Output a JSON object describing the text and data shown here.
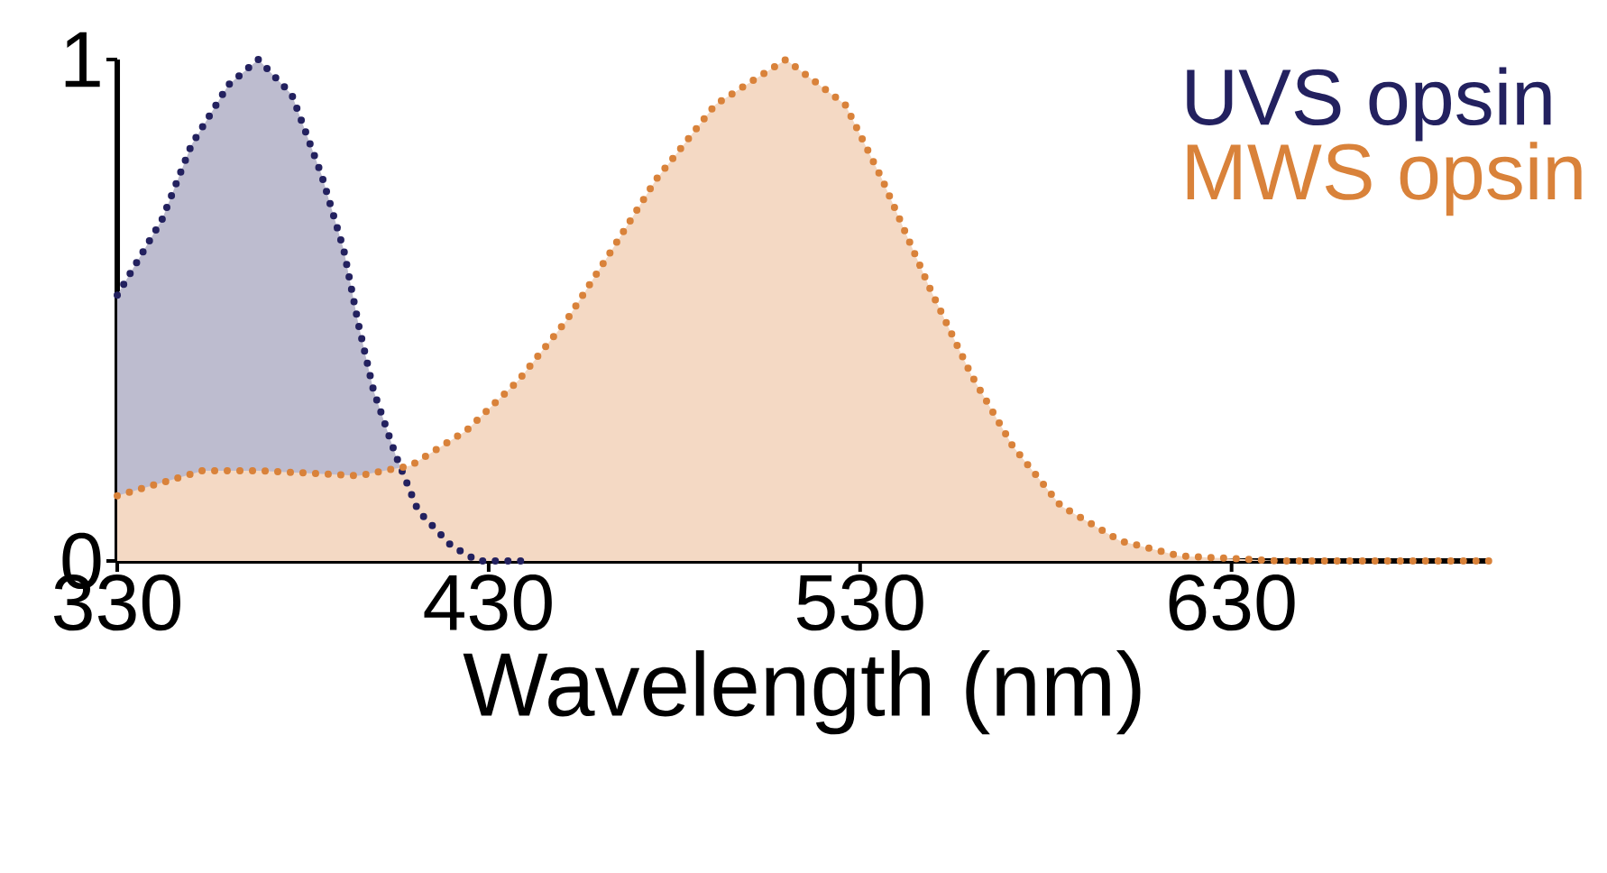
{
  "chart_data": {
    "type": "area",
    "xlabel": "Wavelength (nm)",
    "line_style": "dotted",
    "legend": "top right",
    "xlim": [
      330,
      700
    ],
    "xticks": [
      330,
      430,
      530,
      630
    ],
    "ylim": [
      0,
      1
    ],
    "yticks": [
      0,
      1
    ],
    "series": [
      {
        "name": "UVS opsin",
        "color": "#23215f",
        "x": [
          330,
          342,
          350,
          360,
          368,
          377,
          385,
          391,
          395,
          399,
          405,
          411,
          420,
          427,
          440
        ],
        "values": [
          0.53,
          0.68,
          0.83,
          0.95,
          1.0,
          0.93,
          0.77,
          0.62,
          0.47,
          0.34,
          0.21,
          0.1,
          0.03,
          0,
          0
        ]
      },
      {
        "name": "MWS opsin",
        "color": "#d9823a",
        "x": [
          330,
          353,
          368,
          395,
          409,
          424,
          438,
          451,
          464,
          475,
          491,
          510,
          526,
          536,
          549,
          560,
          571,
          584,
          600,
          616,
          643,
          700
        ],
        "values": [
          0.13,
          0.18,
          0.18,
          0.17,
          0.19,
          0.26,
          0.36,
          0.48,
          0.63,
          0.76,
          0.91,
          1.0,
          0.91,
          0.76,
          0.54,
          0.37,
          0.23,
          0.11,
          0.04,
          0.01,
          0,
          0
        ]
      }
    ]
  }
}
